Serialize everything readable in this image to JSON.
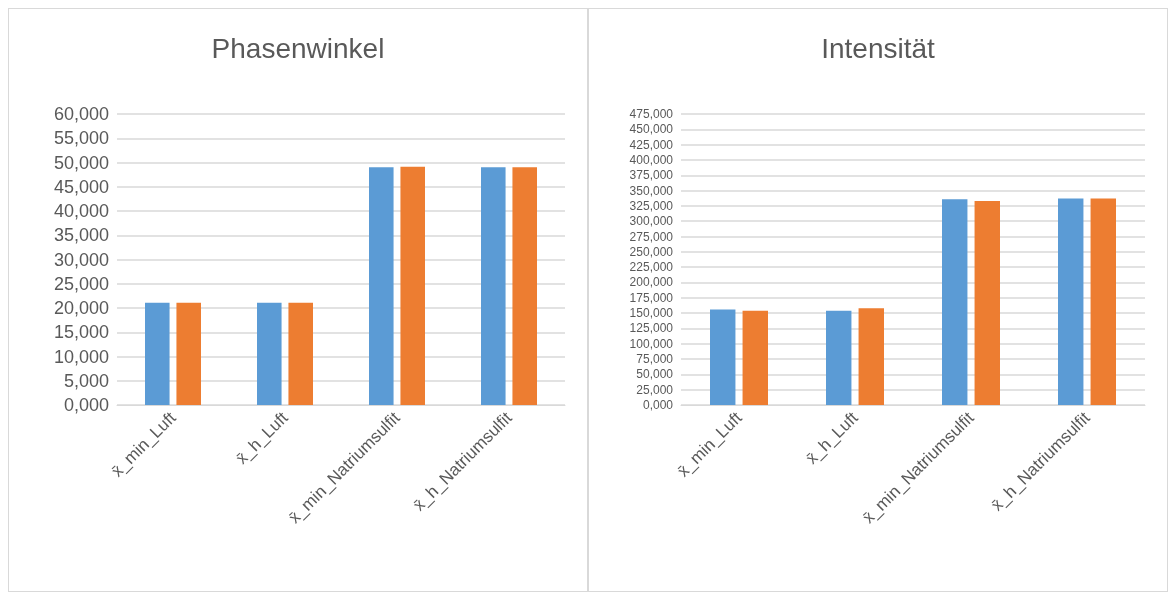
{
  "chart_data": [
    {
      "type": "bar",
      "title": "Phasenwinkel",
      "categories": [
        "x̄_min_Luft",
        "x̄_h_Luft",
        "x̄_min_Natriumsulfit",
        "x̄_h_Natriumsulfit"
      ],
      "series": [
        {
          "color": "#5b9bd5",
          "values": [
            21.1,
            21.1,
            49.0,
            49.0
          ]
        },
        {
          "color": "#ed7d31",
          "values": [
            21.1,
            21.1,
            49.1,
            49.0
          ]
        }
      ],
      "ylim": [
        0,
        60
      ],
      "yticks": [
        {
          "value": 0,
          "label": "0,000"
        },
        {
          "value": 5,
          "label": "5,000"
        },
        {
          "value": 10,
          "label": "10,000"
        },
        {
          "value": 15,
          "label": "15,000"
        },
        {
          "value": 20,
          "label": "20,000"
        },
        {
          "value": 25,
          "label": "25,000"
        },
        {
          "value": 30,
          "label": "30,000"
        },
        {
          "value": 35,
          "label": "35,000"
        },
        {
          "value": 40,
          "label": "40,000"
        },
        {
          "value": 45,
          "label": "45,000"
        },
        {
          "value": 50,
          "label": "50,000"
        },
        {
          "value": 55,
          "label": "55,000"
        },
        {
          "value": 60,
          "label": "60,000"
        }
      ],
      "grid": "y"
    },
    {
      "type": "bar",
      "title": "Intensität",
      "categories": [
        "x̄_min_Luft",
        "x̄_h_Luft",
        "x̄_min_Natriumsulfit",
        "x̄_h_Natriumsulfit"
      ],
      "series": [
        {
          "color": "#5b9bd5",
          "values": [
            156,
            154,
            336,
            337
          ]
        },
        {
          "color": "#ed7d31",
          "values": [
            154,
            158,
            333,
            337
          ]
        }
      ],
      "ylim": [
        0,
        475
      ],
      "yticks": [
        {
          "value": 0,
          "label": "0,000"
        },
        {
          "value": 25,
          "label": "25,000"
        },
        {
          "value": 50,
          "label": "50,000"
        },
        {
          "value": 75,
          "label": "75,000"
        },
        {
          "value": 100,
          "label": "100,000"
        },
        {
          "value": 125,
          "label": "125,000"
        },
        {
          "value": 150,
          "label": "150,000"
        },
        {
          "value": 175,
          "label": "175,000"
        },
        {
          "value": 200,
          "label": "200,000"
        },
        {
          "value": 225,
          "label": "225,000"
        },
        {
          "value": 250,
          "label": "250,000"
        },
        {
          "value": 275,
          "label": "275,000"
        },
        {
          "value": 300,
          "label": "300,000"
        },
        {
          "value": 325,
          "label": "325,000"
        },
        {
          "value": 350,
          "label": "350,000"
        },
        {
          "value": 375,
          "label": "375,000"
        },
        {
          "value": 400,
          "label": "400,000"
        },
        {
          "value": 425,
          "label": "425,000"
        },
        {
          "value": 450,
          "label": "450,000"
        },
        {
          "value": 475,
          "label": "475,000"
        }
      ],
      "grid": "y"
    }
  ]
}
